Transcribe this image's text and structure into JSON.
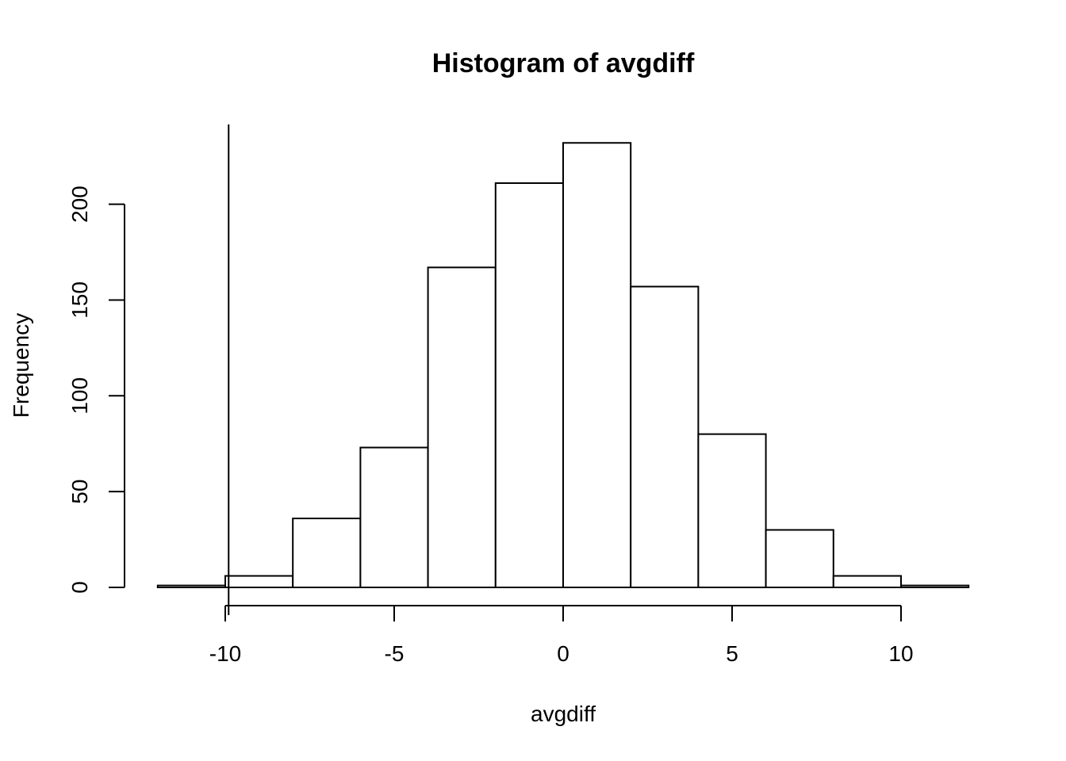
{
  "chart_data": {
    "type": "bar",
    "title": "Histogram of avgdiff",
    "xlabel": "avgdiff",
    "ylabel": "Frequency",
    "bins": [
      {
        "x0": -12,
        "x1": -10,
        "count": 1
      },
      {
        "x0": -10,
        "x1": -8,
        "count": 6
      },
      {
        "x0": -8,
        "x1": -6,
        "count": 36
      },
      {
        "x0": -6,
        "x1": -4,
        "count": 73
      },
      {
        "x0": -4,
        "x1": -2,
        "count": 167
      },
      {
        "x0": -2,
        "x1": 0,
        "count": 211
      },
      {
        "x0": 0,
        "x1": 2,
        "count": 232
      },
      {
        "x0": 2,
        "x1": 4,
        "count": 157
      },
      {
        "x0": 4,
        "x1": 6,
        "count": 80
      },
      {
        "x0": 6,
        "x1": 8,
        "count": 30
      },
      {
        "x0": 8,
        "x1": 10,
        "count": 6
      },
      {
        "x0": 10,
        "x1": 12,
        "count": 1
      }
    ],
    "xlim": [
      -12,
      12
    ],
    "ylim": [
      0,
      240
    ],
    "x_ticks": [
      -10,
      -5,
      0,
      5,
      10
    ],
    "x_tick_labels": [
      "-10",
      "-5",
      "0",
      "5",
      "10"
    ],
    "y_ticks": [
      0,
      50,
      100,
      150,
      200
    ],
    "y_tick_labels": [
      "0",
      "50",
      "100",
      "150",
      "200"
    ],
    "vertical_line_x": -9.9,
    "grid": false,
    "colors": {
      "bar_fill": "#ffffff",
      "bar_stroke": "#000000"
    }
  }
}
